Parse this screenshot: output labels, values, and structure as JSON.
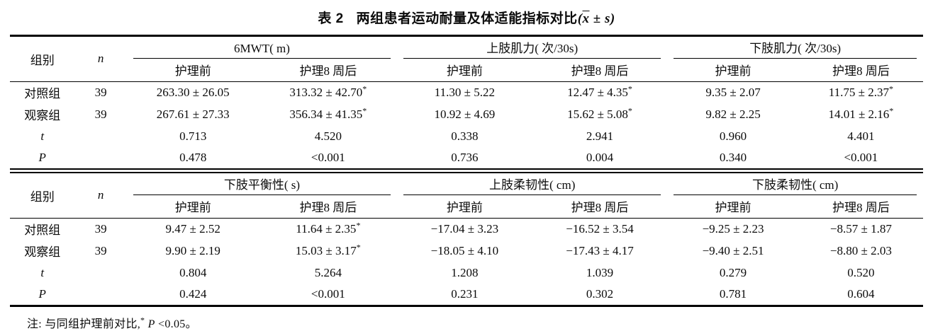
{
  "title": {
    "label": "表 2",
    "text": "两组患者运动耐量及体适能指标对比",
    "stat_open": "(",
    "stat_x": "x",
    "stat_rest": " ± s",
    "stat_close": ")"
  },
  "sections": [
    {
      "group_col_header": "组别",
      "n_col_header": "n",
      "groups": [
        {
          "label": "6MWT( m)"
        },
        {
          "label": "上肢肌力( 次/30s)"
        },
        {
          "label": "下肢肌力( 次/30s)"
        }
      ],
      "sub_headers": [
        "护理前",
        "护理8 周后"
      ],
      "rows": [
        {
          "label": "对照组",
          "label_italic": false,
          "n": "39",
          "values": [
            "263.30 ± 26.05",
            "313.32 ± 42.70*",
            "11.30 ± 5.22",
            "12.47 ± 4.35*",
            "9.35 ± 2.07",
            "11.75 ± 2.37*"
          ]
        },
        {
          "label": "观察组",
          "label_italic": false,
          "n": "39",
          "values": [
            "267.61 ± 27.33",
            "356.34 ± 41.35*",
            "10.92 ± 4.69",
            "15.62 ± 5.08*",
            "9.82 ± 2.25",
            "14.01 ± 2.16*"
          ]
        },
        {
          "label": "t",
          "label_italic": true,
          "n": "",
          "values": [
            "0.713",
            "4.520",
            "0.338",
            "2.941",
            "0.960",
            "4.401"
          ]
        },
        {
          "label": "P",
          "label_italic": true,
          "n": "",
          "values": [
            "0.478",
            "<0.001",
            "0.736",
            "0.004",
            "0.340",
            "<0.001"
          ]
        }
      ]
    },
    {
      "group_col_header": "组别",
      "n_col_header": "n",
      "groups": [
        {
          "label": "下肢平衡性( s)"
        },
        {
          "label": "上肢柔韧性( cm)"
        },
        {
          "label": "下肢柔韧性( cm)"
        }
      ],
      "sub_headers": [
        "护理前",
        "护理8 周后"
      ],
      "rows": [
        {
          "label": "对照组",
          "label_italic": false,
          "n": "39",
          "values": [
            "9.47 ± 2.52",
            "11.64 ± 2.35*",
            "−17.04 ± 3.23",
            "−16.52 ± 3.54",
            "−9.25 ± 2.23",
            "−8.57 ± 1.87"
          ]
        },
        {
          "label": "观察组",
          "label_italic": false,
          "n": "39",
          "values": [
            "9.90 ± 2.19",
            "15.03 ± 3.17*",
            "−18.05 ± 4.10",
            "−17.43 ± 4.17",
            "−9.40 ± 2.51",
            "−8.80 ± 2.03"
          ]
        },
        {
          "label": "t",
          "label_italic": true,
          "n": "",
          "values": [
            "0.804",
            "5.264",
            "1.208",
            "1.039",
            "0.279",
            "0.520"
          ]
        },
        {
          "label": "P",
          "label_italic": true,
          "n": "",
          "values": [
            "0.424",
            "<0.001",
            "0.231",
            "0.302",
            "0.781",
            "0.604"
          ]
        }
      ]
    }
  ],
  "note": {
    "prefix": "注: 与同组护理前对比,",
    "star": "*",
    "p_label": "P",
    "rest": " <0.05。"
  }
}
